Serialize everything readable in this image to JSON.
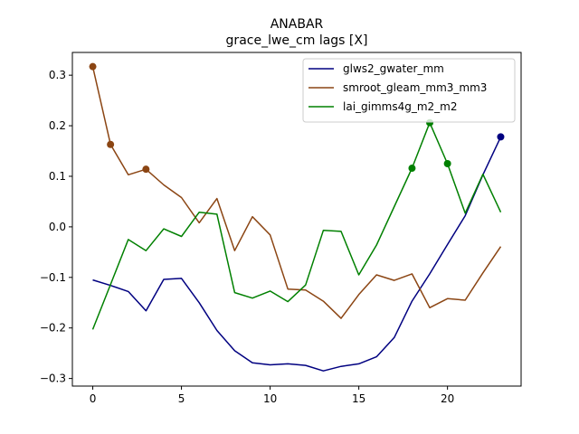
{
  "chart_data": {
    "type": "line",
    "title": "ANABAR",
    "subtitle": "grace_lwe_cm lags [X]",
    "xlabel": "",
    "ylabel": "",
    "xlim": [
      -1.15,
      24.15
    ],
    "ylim": [
      -0.315,
      0.345
    ],
    "x_ticks": [
      0,
      5,
      10,
      15,
      20
    ],
    "y_ticks": [
      -0.3,
      -0.2,
      -0.1,
      0.0,
      0.1,
      0.2,
      0.3
    ],
    "y_tick_labels": [
      "−0.3",
      "−0.2",
      "−0.1",
      "0.0",
      "0.1",
      "0.2",
      "0.3"
    ],
    "grid": false,
    "legend_position": "top-right",
    "x": [
      0,
      1,
      2,
      3,
      4,
      5,
      6,
      7,
      8,
      9,
      10,
      11,
      12,
      13,
      14,
      15,
      16,
      17,
      18,
      19,
      20,
      21,
      22,
      23
    ],
    "series": [
      {
        "name": "glws2_gwater_mm",
        "color": "#000080",
        "values": [
          -0.105,
          -0.116,
          -0.128,
          -0.166,
          -0.104,
          -0.102,
          -0.15,
          -0.205,
          -0.245,
          -0.269,
          -0.273,
          -0.271,
          -0.274,
          -0.285,
          -0.276,
          -0.271,
          -0.257,
          -0.219,
          -0.147,
          -0.093,
          -0.035,
          0.022,
          0.103,
          0.178
        ],
        "markers": [
          23
        ]
      },
      {
        "name": "smroot_gleam_mm3_mm3",
        "color": "#8B4513",
        "values": [
          0.317,
          0.163,
          0.103,
          0.114,
          0.083,
          0.058,
          0.008,
          0.056,
          -0.047,
          0.02,
          -0.016,
          -0.123,
          -0.125,
          -0.147,
          -0.181,
          -0.134,
          -0.095,
          -0.106,
          -0.093,
          -0.16,
          -0.142,
          -0.145,
          -0.091,
          -0.039
        ],
        "markers": [
          0,
          1,
          3
        ]
      },
      {
        "name": "lai_gimms4g_m2_m2",
        "color": "#008000",
        "values": [
          -0.203,
          -0.114,
          -0.025,
          -0.047,
          -0.004,
          -0.019,
          0.029,
          0.025,
          -0.13,
          -0.141,
          -0.127,
          -0.148,
          -0.115,
          -0.007,
          -0.009,
          -0.095,
          -0.036,
          0.04,
          0.116,
          0.206,
          0.125,
          0.027,
          0.104,
          0.029
        ],
        "markers": [
          18,
          19,
          20
        ]
      }
    ]
  }
}
